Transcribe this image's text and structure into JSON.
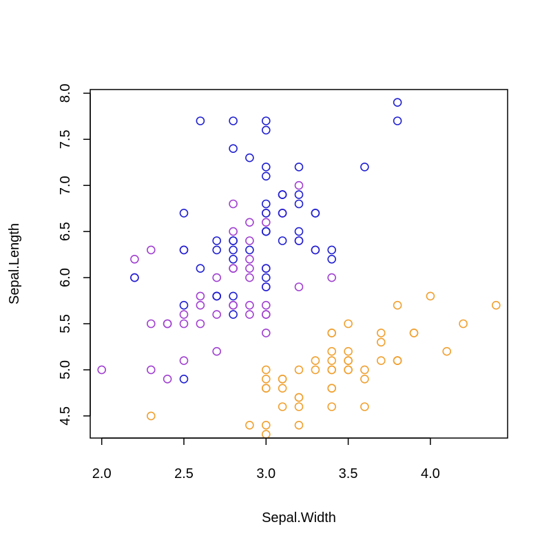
{
  "chart_data": {
    "type": "scatter",
    "title": "",
    "xlabel": "Sepal.Width",
    "ylabel": "Sepal.Length",
    "xlim": [
      1.93,
      4.47
    ],
    "ylim": [
      4.26,
      8.04
    ],
    "x_ticks": [
      2.0,
      2.5,
      3.0,
      3.5,
      4.0
    ],
    "x_tick_labels": [
      "2.0",
      "2.5",
      "3.0",
      "3.5",
      "4.0"
    ],
    "y_ticks": [
      4.5,
      5.0,
      5.5,
      6.0,
      6.5,
      7.0,
      7.5,
      8.0
    ],
    "y_tick_labels": [
      "4.5",
      "5.0",
      "5.5",
      "6.0",
      "6.5",
      "7.0",
      "7.5",
      "8.0"
    ],
    "grid": false,
    "legend": "none",
    "marker": "open-circle",
    "series": [
      {
        "color": "#f0a030",
        "points": [
          [
            3.5,
            5.1
          ],
          [
            3.0,
            4.9
          ],
          [
            3.2,
            4.7
          ],
          [
            3.1,
            4.6
          ],
          [
            3.6,
            5.0
          ],
          [
            3.9,
            5.4
          ],
          [
            3.4,
            4.6
          ],
          [
            3.4,
            5.0
          ],
          [
            2.9,
            4.4
          ],
          [
            3.1,
            4.9
          ],
          [
            3.7,
            5.4
          ],
          [
            3.4,
            4.8
          ],
          [
            3.0,
            4.8
          ],
          [
            3.0,
            4.3
          ],
          [
            4.0,
            5.8
          ],
          [
            4.4,
            5.7
          ],
          [
            3.9,
            5.4
          ],
          [
            3.5,
            5.1
          ],
          [
            3.8,
            5.7
          ],
          [
            3.8,
            5.1
          ],
          [
            3.4,
            5.4
          ],
          [
            3.7,
            5.1
          ],
          [
            3.6,
            4.6
          ],
          [
            3.3,
            5.1
          ],
          [
            3.4,
            4.8
          ],
          [
            3.0,
            5.0
          ],
          [
            3.4,
            5.0
          ],
          [
            3.5,
            5.2
          ],
          [
            3.4,
            5.2
          ],
          [
            3.2,
            4.7
          ],
          [
            3.1,
            4.8
          ],
          [
            3.4,
            5.4
          ],
          [
            4.1,
            5.2
          ],
          [
            4.2,
            5.5
          ],
          [
            3.1,
            4.9
          ],
          [
            3.2,
            5.0
          ],
          [
            3.5,
            5.5
          ],
          [
            3.6,
            4.9
          ],
          [
            3.0,
            4.4
          ],
          [
            3.4,
            5.1
          ],
          [
            3.5,
            5.0
          ],
          [
            2.3,
            4.5
          ],
          [
            3.2,
            4.4
          ],
          [
            3.5,
            5.0
          ],
          [
            3.8,
            5.1
          ],
          [
            3.0,
            4.8
          ],
          [
            3.8,
            5.1
          ],
          [
            3.2,
            4.6
          ],
          [
            3.7,
            5.3
          ],
          [
            3.3,
            5.0
          ]
        ]
      },
      {
        "color": "#a040d0",
        "points": [
          [
            3.2,
            7.0
          ],
          [
            3.2,
            6.4
          ],
          [
            3.1,
            6.9
          ],
          [
            2.3,
            5.5
          ],
          [
            2.8,
            6.5
          ],
          [
            2.8,
            5.7
          ],
          [
            3.3,
            6.3
          ],
          [
            2.4,
            4.9
          ],
          [
            2.9,
            6.6
          ],
          [
            2.7,
            5.2
          ],
          [
            2.0,
            5.0
          ],
          [
            3.0,
            5.9
          ],
          [
            2.2,
            6.0
          ],
          [
            2.9,
            6.1
          ],
          [
            2.9,
            5.6
          ],
          [
            3.1,
            6.7
          ],
          [
            3.0,
            5.6
          ],
          [
            2.7,
            5.8
          ],
          [
            2.2,
            6.2
          ],
          [
            2.5,
            5.6
          ],
          [
            3.2,
            5.9
          ],
          [
            2.8,
            6.1
          ],
          [
            2.5,
            6.3
          ],
          [
            2.8,
            6.1
          ],
          [
            2.9,
            6.4
          ],
          [
            3.0,
            6.6
          ],
          [
            2.8,
            6.8
          ],
          [
            3.0,
            6.7
          ],
          [
            2.9,
            6.0
          ],
          [
            2.6,
            5.7
          ],
          [
            2.4,
            5.5
          ],
          [
            2.4,
            5.5
          ],
          [
            2.7,
            5.8
          ],
          [
            2.7,
            6.0
          ],
          [
            3.0,
            5.4
          ],
          [
            3.4,
            6.0
          ],
          [
            3.1,
            6.7
          ],
          [
            2.3,
            6.3
          ],
          [
            3.0,
            5.6
          ],
          [
            2.5,
            5.5
          ],
          [
            2.6,
            5.5
          ],
          [
            3.0,
            6.1
          ],
          [
            2.6,
            5.8
          ],
          [
            2.3,
            5.0
          ],
          [
            2.7,
            5.6
          ],
          [
            3.0,
            5.7
          ],
          [
            2.9,
            5.7
          ],
          [
            2.9,
            6.2
          ],
          [
            2.5,
            5.1
          ],
          [
            2.8,
            5.7
          ]
        ]
      },
      {
        "color": "#2020d0",
        "points": [
          [
            3.3,
            6.3
          ],
          [
            2.7,
            5.8
          ],
          [
            3.0,
            7.1
          ],
          [
            2.9,
            6.3
          ],
          [
            3.0,
            6.5
          ],
          [
            3.0,
            7.6
          ],
          [
            2.5,
            4.9
          ],
          [
            2.9,
            7.3
          ],
          [
            2.5,
            6.7
          ],
          [
            3.6,
            7.2
          ],
          [
            3.2,
            6.5
          ],
          [
            2.7,
            6.4
          ],
          [
            3.0,
            6.8
          ],
          [
            2.5,
            5.7
          ],
          [
            2.8,
            5.8
          ],
          [
            3.2,
            6.4
          ],
          [
            3.0,
            6.5
          ],
          [
            3.8,
            7.7
          ],
          [
            2.6,
            7.7
          ],
          [
            2.2,
            6.0
          ],
          [
            3.2,
            6.9
          ],
          [
            2.8,
            5.6
          ],
          [
            2.8,
            7.7
          ],
          [
            2.7,
            6.3
          ],
          [
            3.3,
            6.7
          ],
          [
            3.2,
            7.2
          ],
          [
            2.8,
            6.2
          ],
          [
            3.0,
            6.1
          ],
          [
            2.8,
            6.4
          ],
          [
            3.0,
            7.2
          ],
          [
            2.8,
            7.4
          ],
          [
            3.8,
            7.9
          ],
          [
            2.8,
            6.4
          ],
          [
            2.8,
            6.3
          ],
          [
            2.6,
            6.1
          ],
          [
            3.0,
            7.7
          ],
          [
            3.4,
            6.3
          ],
          [
            3.1,
            6.4
          ],
          [
            3.0,
            6.0
          ],
          [
            3.1,
            6.9
          ],
          [
            3.1,
            6.7
          ],
          [
            3.1,
            6.9
          ],
          [
            2.7,
            5.8
          ],
          [
            3.2,
            6.8
          ],
          [
            3.3,
            6.7
          ],
          [
            3.0,
            6.7
          ],
          [
            2.5,
            6.3
          ],
          [
            3.0,
            6.5
          ],
          [
            3.4,
            6.2
          ],
          [
            3.0,
            5.9
          ]
        ]
      }
    ]
  }
}
